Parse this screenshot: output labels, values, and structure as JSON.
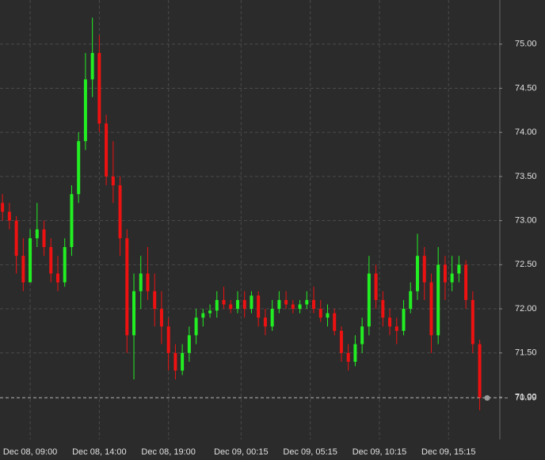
{
  "chart_data": {
    "type": "candlestick",
    "x": [
      7,
      7.5,
      8,
      8.5,
      9,
      9.5,
      10,
      10.5,
      11,
      11.5,
      12,
      12.5,
      13,
      13.5,
      14,
      14.5,
      15,
      15.5,
      16,
      16.5,
      17,
      17.5,
      18,
      18.5,
      19,
      19.5,
      20,
      20.5,
      21,
      21.5,
      22,
      22.5,
      23,
      23.5,
      24,
      24.5,
      25,
      25.5,
      26,
      26.5,
      27,
      27.5,
      28,
      28.5,
      29,
      29.5,
      30,
      30.5,
      31,
      31.5,
      32,
      32.5,
      33,
      33.5,
      34,
      34.5,
      35,
      35.5,
      36,
      36.5,
      37,
      37.5,
      38,
      38.5,
      39,
      39.5,
      40,
      40.5,
      41,
      41.5
    ],
    "open": [
      73.2,
      73.1,
      73.0,
      72.6,
      72.3,
      72.8,
      72.9,
      72.7,
      72.4,
      72.3,
      72.7,
      73.3,
      73.9,
      74.6,
      74.9,
      74.1,
      73.5,
      73.4,
      72.8,
      71.7,
      72.2,
      72.4,
      72.2,
      72.0,
      71.8,
      71.5,
      71.3,
      71.5,
      71.7,
      71.9,
      71.95,
      71.98,
      72.1,
      72.05,
      72.0,
      72.1,
      72.0,
      72.15,
      71.9,
      71.8,
      72.0,
      72.1,
      72.05,
      72.0,
      72.05,
      72.1,
      72.0,
      71.9,
      71.95,
      71.75,
      71.5,
      71.4,
      71.6,
      71.8,
      72.4,
      72.1,
      71.9,
      71.8,
      71.75,
      72.0,
      72.2,
      72.6,
      72.3,
      71.7,
      72.5,
      72.3,
      72.4,
      72.5,
      72.1,
      71.6
    ],
    "high": [
      73.3,
      73.2,
      73.05,
      72.8,
      72.9,
      73.2,
      73.0,
      72.8,
      72.6,
      72.8,
      73.4,
      74.0,
      74.9,
      75.3,
      75.1,
      74.2,
      73.9,
      73.5,
      72.9,
      72.4,
      72.6,
      72.7,
      72.4,
      72.2,
      71.9,
      71.6,
      71.6,
      71.8,
      72.0,
      72.0,
      72.05,
      72.2,
      72.25,
      72.1,
      72.2,
      72.2,
      72.2,
      72.2,
      72.0,
      72.1,
      72.2,
      72.2,
      72.1,
      72.1,
      72.2,
      72.25,
      72.1,
      72.05,
      72.0,
      71.8,
      71.6,
      71.7,
      71.9,
      72.6,
      72.5,
      72.2,
      72.0,
      71.9,
      72.1,
      72.3,
      72.85,
      72.7,
      72.4,
      72.7,
      72.6,
      72.6,
      72.6,
      72.55,
      72.2,
      71.65
    ],
    "low": [
      73.0,
      72.9,
      72.4,
      72.2,
      72.3,
      72.7,
      72.6,
      72.3,
      72.2,
      72.25,
      72.6,
      73.2,
      73.8,
      74.4,
      74.0,
      73.4,
      73.2,
      72.6,
      71.5,
      71.2,
      72.0,
      72.1,
      71.8,
      71.6,
      71.3,
      71.2,
      71.25,
      71.4,
      71.6,
      71.8,
      71.9,
      71.9,
      72.0,
      71.95,
      71.95,
      71.9,
      71.95,
      71.8,
      71.7,
      71.75,
      71.95,
      72.0,
      71.95,
      71.95,
      72.0,
      71.95,
      71.85,
      71.8,
      71.7,
      71.4,
      71.3,
      71.35,
      71.5,
      71.7,
      72.0,
      71.8,
      71.7,
      71.6,
      71.7,
      71.95,
      72.1,
      72.1,
      71.5,
      71.6,
      72.1,
      72.2,
      72.3,
      72.0,
      71.5,
      70.85
    ],
    "close": [
      73.1,
      73.0,
      72.6,
      72.3,
      72.8,
      72.9,
      72.7,
      72.4,
      72.3,
      72.7,
      73.3,
      73.9,
      74.6,
      74.9,
      74.1,
      73.5,
      73.4,
      72.8,
      71.7,
      72.2,
      72.4,
      72.2,
      72.0,
      71.8,
      71.5,
      71.3,
      71.5,
      71.7,
      71.9,
      71.95,
      71.98,
      72.1,
      72.05,
      72.0,
      72.1,
      72.0,
      72.15,
      71.9,
      71.8,
      72.0,
      72.1,
      72.05,
      72.0,
      72.05,
      72.1,
      72.0,
      71.9,
      71.95,
      71.75,
      71.5,
      71.4,
      71.6,
      71.8,
      72.4,
      72.1,
      71.9,
      71.8,
      71.75,
      72.0,
      72.2,
      72.6,
      72.3,
      71.7,
      72.5,
      72.3,
      72.4,
      72.5,
      72.1,
      71.6,
      70.99
    ],
    "up_color": "#22ee22",
    "down_color": "#ee1111",
    "xlim": [
      6.82,
      42.9
    ],
    "xticks": [
      {
        "value": 9,
        "label": "Dec 08, 09:00"
      },
      {
        "value": 14,
        "label": "Dec 08, 14:00"
      },
      {
        "value": 19,
        "label": "Dec 08, 19:00"
      },
      {
        "value": 24.25,
        "label": "Dec 09, 00:15"
      },
      {
        "value": 29.25,
        "label": "Dec 09, 05:15"
      },
      {
        "value": 34.25,
        "label": "Dec 09, 10:15"
      },
      {
        "value": 39.25,
        "label": "Dec 09, 15:15"
      }
    ],
    "ylim": [
      70.52,
      75.5
    ],
    "yticks": [
      {
        "value": 71,
        "label": "71.00"
      },
      {
        "value": 71.5,
        "label": "71.50"
      },
      {
        "value": 72,
        "label": "72.00"
      },
      {
        "value": 72.5,
        "label": "72.50"
      },
      {
        "value": 73,
        "label": "73.00"
      },
      {
        "value": 73.5,
        "label": "73.50"
      },
      {
        "value": 74,
        "label": "74.00"
      },
      {
        "value": 74.5,
        "label": "74.50"
      },
      {
        "value": 75,
        "label": "75.00"
      }
    ],
    "current_price": 70.99,
    "grid": true
  }
}
